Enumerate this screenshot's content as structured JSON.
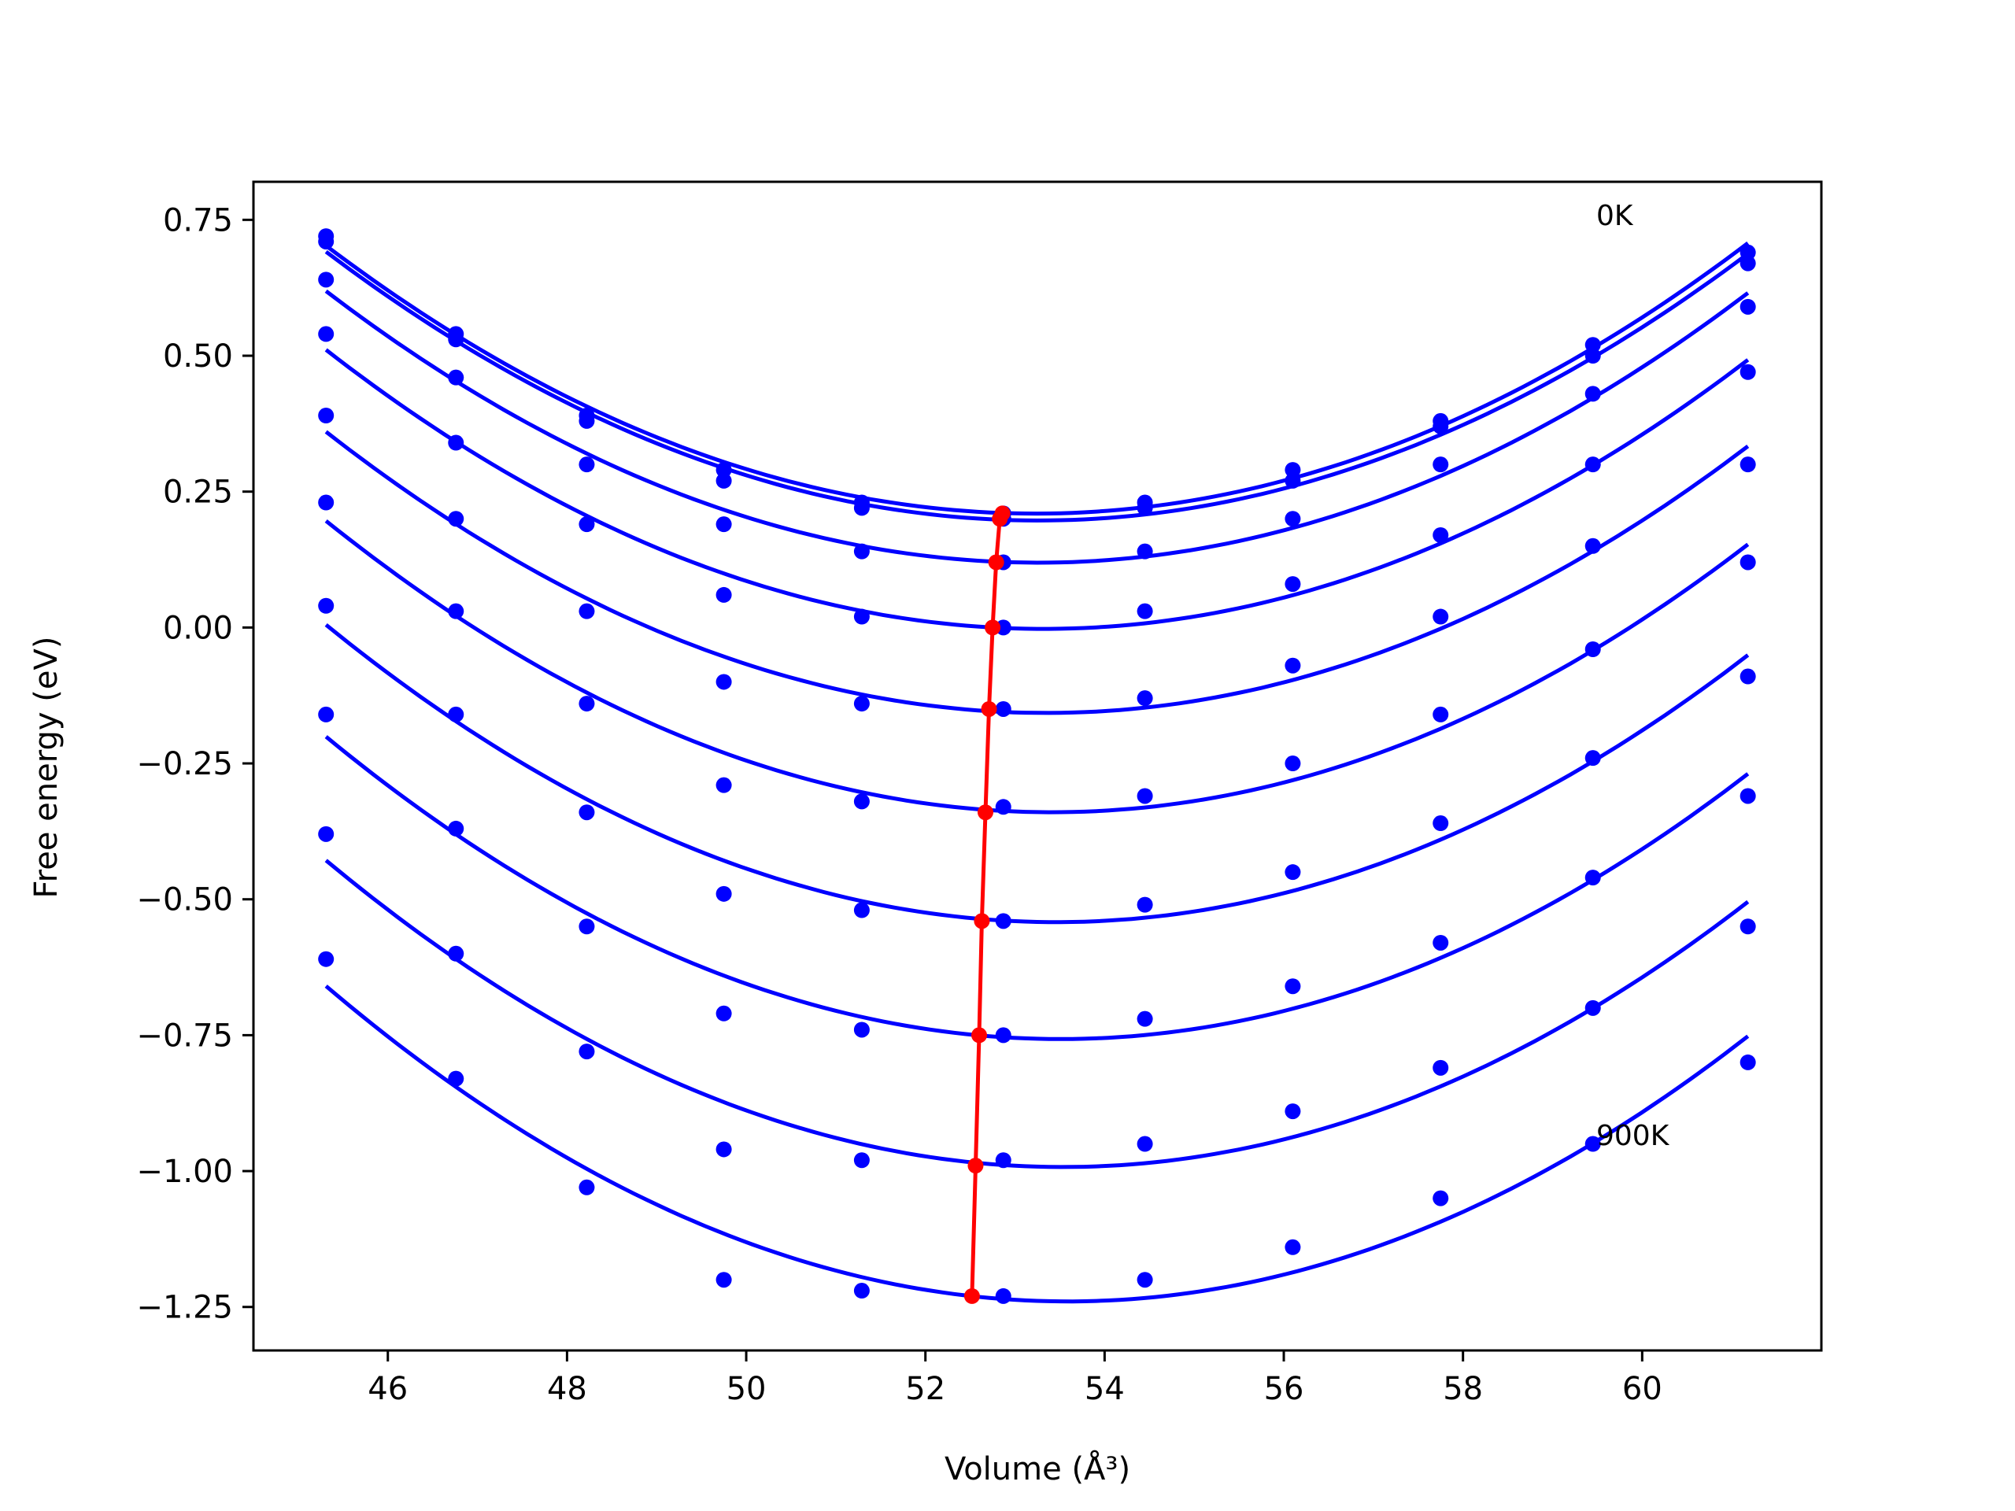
{
  "chart_data": {
    "type": "scatter",
    "xlabel": "Volume (Å³)",
    "ylabel": "Free energy (eV)",
    "xlim": [
      44.5,
      62.0
    ],
    "ylim": [
      -1.33,
      0.82
    ],
    "grid": false,
    "x_ticks": [
      "46",
      "48",
      "50",
      "52",
      "54",
      "56",
      "58",
      "60"
    ],
    "y_ticks": [
      "−1.25",
      "−1.00",
      "−0.75",
      "−0.50",
      "−0.25",
      "0.00",
      "0.25",
      "0.50",
      "0.75"
    ],
    "annotations": [
      {
        "text": "0K",
        "x": 59.4,
        "y": 0.75
      },
      {
        "text": "900K",
        "x": 59.4,
        "y": -0.93
      }
    ],
    "x": [
      45.31,
      46.76,
      48.22,
      49.75,
      51.29,
      52.87,
      54.45,
      56.1,
      57.75,
      59.45,
      61.18
    ],
    "series": [
      {
        "label": "0K",
        "color": "#0000ff",
        "values": [
          0.72,
          0.54,
          0.39,
          0.29,
          0.23,
          0.21,
          0.23,
          0.29,
          0.38,
          0.52,
          0.69
        ]
      },
      {
        "color": "#0000ff",
        "values": [
          0.71,
          0.53,
          0.38,
          0.27,
          0.22,
          0.2,
          0.22,
          0.27,
          0.37,
          0.5,
          0.67
        ]
      },
      {
        "color": "#0000ff",
        "values": [
          0.64,
          0.46,
          0.3,
          0.19,
          0.14,
          0.12,
          0.14,
          0.2,
          0.3,
          0.43,
          0.59
        ]
      },
      {
        "color": "#0000ff",
        "values": [
          0.54,
          0.34,
          0.19,
          0.06,
          0.02,
          0.0,
          0.03,
          0.08,
          0.17,
          0.3,
          0.47
        ]
      },
      {
        "color": "#0000ff",
        "values": [
          0.39,
          0.2,
          0.03,
          -0.1,
          -0.14,
          -0.15,
          -0.13,
          -0.07,
          0.02,
          0.15,
          0.3
        ]
      },
      {
        "color": "#0000ff",
        "values": [
          0.23,
          0.03,
          -0.14,
          -0.29,
          -0.32,
          -0.33,
          -0.31,
          -0.25,
          -0.16,
          -0.04,
          0.12
        ]
      },
      {
        "color": "#0000ff",
        "values": [
          0.04,
          -0.16,
          -0.34,
          -0.49,
          -0.52,
          -0.54,
          -0.51,
          -0.45,
          -0.36,
          -0.24,
          -0.09
        ]
      },
      {
        "color": "#0000ff",
        "values": [
          -0.16,
          -0.37,
          -0.55,
          -0.71,
          -0.74,
          -0.75,
          -0.72,
          -0.66,
          -0.58,
          -0.46,
          -0.31
        ]
      },
      {
        "color": "#0000ff",
        "values": [
          -0.38,
          -0.6,
          -0.78,
          -0.96,
          -0.98,
          -0.98,
          -0.95,
          -0.89,
          -0.81,
          -0.7,
          -0.55
        ]
      },
      {
        "label": "900K",
        "color": "#0000ff",
        "values": [
          -0.61,
          -0.83,
          -1.03,
          -1.2,
          -1.22,
          -1.23,
          -1.2,
          -1.14,
          -1.05,
          -0.95,
          -0.8
        ]
      }
    ],
    "minimum_line": {
      "color": "#ff0000",
      "x": [
        52.86,
        52.83,
        52.79,
        52.75,
        52.71,
        52.67,
        52.63,
        52.6,
        52.56,
        52.52
      ],
      "y": [
        0.21,
        0.2,
        0.12,
        0.0,
        -0.15,
        -0.34,
        -0.54,
        -0.75,
        -0.99,
        -1.23
      ]
    }
  }
}
